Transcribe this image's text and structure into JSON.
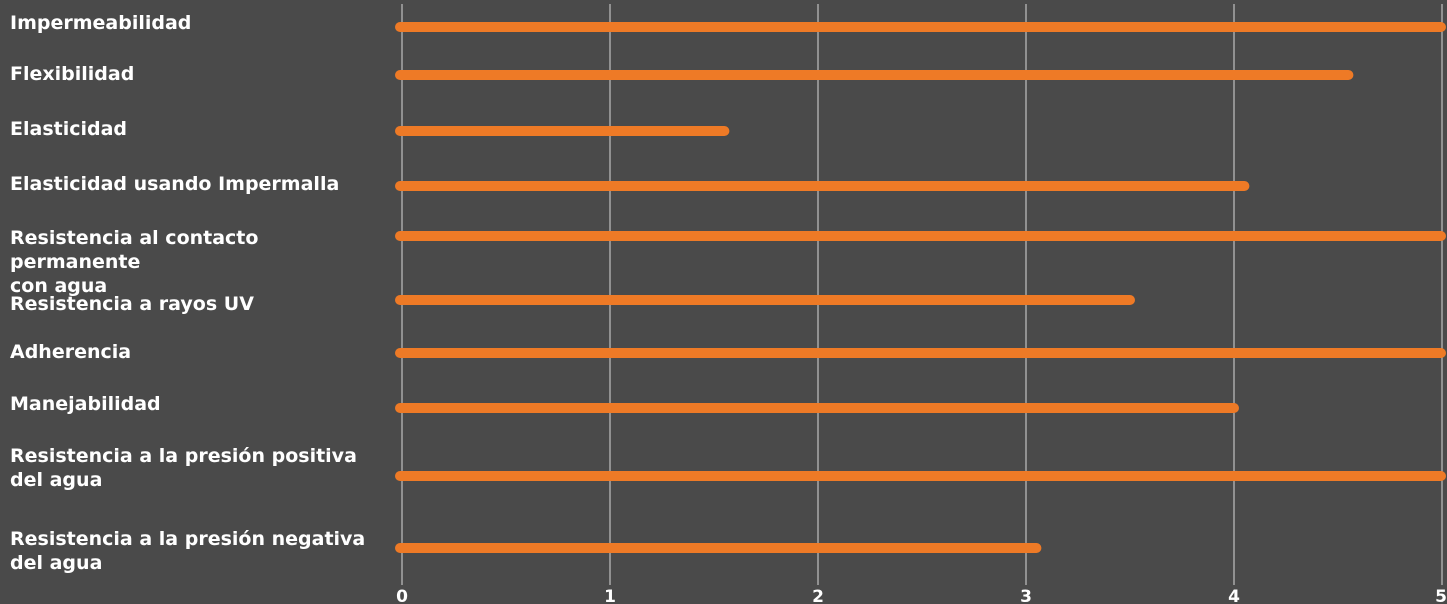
{
  "chart_data": {
    "type": "bar",
    "orientation": "horizontal",
    "categories": [
      "Impermeabilidad",
      "Flexibilidad",
      "Elasticidad",
      "Elasticidad usando Impermalla",
      "Resistencia al contacto permanente con agua",
      "Resistencia a rayos UV",
      "Adherencia",
      "Manejabilidad",
      "Resistencia a la presión positiva del agua",
      "Resistencia a la presión negativa del agua"
    ],
    "category_lines": [
      [
        "Impermeabilidad"
      ],
      [
        "Flexibilidad"
      ],
      [
        "Elasticidad"
      ],
      [
        "Elasticidad usando Impermalla"
      ],
      [
        "Resistencia al contacto permanente",
        "con agua"
      ],
      [
        "Resistencia a rayos UV"
      ],
      [
        "Adherencia"
      ],
      [
        "Manejabilidad"
      ],
      [
        "Resistencia a la presión positiva",
        "del agua"
      ],
      [
        "Resistencia a la presión negativa",
        "del agua"
      ]
    ],
    "values": [
      5,
      4.55,
      1.55,
      4.05,
      5,
      3.5,
      5,
      4,
      5,
      3.05
    ],
    "xlim": [
      0,
      5
    ],
    "xticks": [
      "0",
      "1",
      "2",
      "3",
      "4",
      "5"
    ],
    "grid": true,
    "colors": {
      "background": "#4a4a4a",
      "bar": "#ee7a26",
      "grid": "#d8d8d8",
      "text": "#ffffff"
    }
  }
}
